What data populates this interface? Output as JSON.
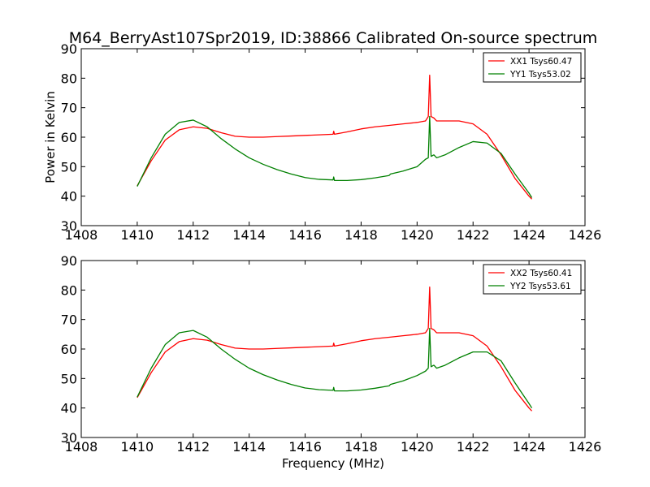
{
  "figure": {
    "title": "M64_BerryAst107Spr2019, ID:38866 Calibrated On-source spectrum"
  },
  "chart_data": [
    {
      "type": "line",
      "xlabel": "",
      "ylabel": "Power in Kelvin",
      "xlim": [
        1408,
        1426
      ],
      "ylim": [
        30,
        90
      ],
      "xticks": [
        1408,
        1410,
        1412,
        1414,
        1416,
        1418,
        1420,
        1422,
        1424,
        1426
      ],
      "yticks": [
        30,
        40,
        50,
        60,
        70,
        80,
        90
      ],
      "grid": false,
      "legend_position": "top-right",
      "series": [
        {
          "name": "XX1 Tsys60.47",
          "color": "#ff0000",
          "x": [
            1410.0,
            1410.5,
            1411.0,
            1411.5,
            1412.0,
            1412.5,
            1413.0,
            1413.5,
            1414.0,
            1414.5,
            1415.0,
            1415.5,
            1416.0,
            1416.5,
            1417.0,
            1417.02,
            1417.05,
            1417.5,
            1418.0,
            1418.5,
            1419.0,
            1419.5,
            1420.0,
            1420.3,
            1420.4,
            1420.45,
            1420.5,
            1420.6,
            1420.7,
            1421.0,
            1421.5,
            1422.0,
            1422.5,
            1423.0,
            1423.5,
            1424.0,
            1424.1
          ],
          "y": [
            43.5,
            52.0,
            59.0,
            62.5,
            63.5,
            63.0,
            61.5,
            60.3,
            60.0,
            60.0,
            60.2,
            60.4,
            60.6,
            60.8,
            61.0,
            62.0,
            61.0,
            61.8,
            62.8,
            63.5,
            64.0,
            64.5,
            65.0,
            65.5,
            67.0,
            81.0,
            67.0,
            66.5,
            65.5,
            65.5,
            65.5,
            64.5,
            61.0,
            54.0,
            46.0,
            40.0,
            39.0
          ]
        },
        {
          "name": "YY1 Tsys53.02",
          "color": "#008000",
          "x": [
            1410.0,
            1410.5,
            1411.0,
            1411.5,
            1412.0,
            1412.5,
            1413.0,
            1413.5,
            1414.0,
            1414.5,
            1415.0,
            1415.5,
            1416.0,
            1416.5,
            1417.0,
            1417.02,
            1417.05,
            1417.5,
            1418.0,
            1418.5,
            1419.0,
            1419.05,
            1419.5,
            1420.0,
            1420.3,
            1420.4,
            1420.45,
            1420.5,
            1420.6,
            1420.7,
            1421.0,
            1421.5,
            1422.0,
            1422.5,
            1423.0,
            1423.5,
            1424.0,
            1424.1
          ],
          "y": [
            43.3,
            53.0,
            61.0,
            65.0,
            65.8,
            63.5,
            59.5,
            56.0,
            53.0,
            50.8,
            49.0,
            47.5,
            46.3,
            45.7,
            45.5,
            46.5,
            45.3,
            45.3,
            45.6,
            46.2,
            47.0,
            47.5,
            48.5,
            50.0,
            52.5,
            53.0,
            67.0,
            53.5,
            54.0,
            53.0,
            54.0,
            56.5,
            58.5,
            58.0,
            54.5,
            47.5,
            41.0,
            39.5
          ]
        }
      ]
    },
    {
      "type": "line",
      "xlabel": "Frequency (MHz)",
      "ylabel": "",
      "xlim": [
        1408,
        1426
      ],
      "ylim": [
        30,
        90
      ],
      "xticks": [
        1408,
        1410,
        1412,
        1414,
        1416,
        1418,
        1420,
        1422,
        1424,
        1426
      ],
      "yticks": [
        30,
        40,
        50,
        60,
        70,
        80,
        90
      ],
      "grid": false,
      "legend_position": "top-right",
      "series": [
        {
          "name": "XX2 Tsys60.41",
          "color": "#ff0000",
          "x": [
            1410.0,
            1410.5,
            1411.0,
            1411.5,
            1412.0,
            1412.5,
            1413.0,
            1413.5,
            1414.0,
            1414.5,
            1415.0,
            1415.5,
            1416.0,
            1416.5,
            1417.0,
            1417.02,
            1417.05,
            1417.5,
            1418.0,
            1418.5,
            1419.0,
            1419.5,
            1420.0,
            1420.3,
            1420.4,
            1420.45,
            1420.5,
            1420.6,
            1420.7,
            1421.0,
            1421.5,
            1422.0,
            1422.5,
            1423.0,
            1423.5,
            1424.0,
            1424.1
          ],
          "y": [
            43.5,
            52.0,
            59.0,
            62.5,
            63.5,
            63.0,
            61.5,
            60.3,
            60.0,
            60.0,
            60.2,
            60.4,
            60.6,
            60.8,
            61.0,
            62.0,
            61.0,
            61.8,
            62.8,
            63.5,
            64.0,
            64.5,
            65.0,
            65.5,
            67.0,
            81.0,
            67.0,
            66.5,
            65.5,
            65.5,
            65.5,
            64.5,
            61.0,
            54.0,
            46.0,
            40.0,
            39.0
          ]
        },
        {
          "name": "YY2 Tsys53.61",
          "color": "#008000",
          "x": [
            1410.0,
            1410.5,
            1411.0,
            1411.5,
            1412.0,
            1412.5,
            1413.0,
            1413.5,
            1414.0,
            1414.5,
            1415.0,
            1415.5,
            1416.0,
            1416.5,
            1417.0,
            1417.02,
            1417.05,
            1417.5,
            1418.0,
            1418.5,
            1419.0,
            1419.05,
            1419.5,
            1420.0,
            1420.3,
            1420.4,
            1420.45,
            1420.5,
            1420.6,
            1420.7,
            1421.0,
            1421.5,
            1422.0,
            1422.5,
            1423.0,
            1423.5,
            1424.0,
            1424.1
          ],
          "y": [
            43.7,
            53.5,
            61.5,
            65.5,
            66.3,
            64.0,
            60.0,
            56.5,
            53.5,
            51.3,
            49.5,
            48.0,
            46.8,
            46.2,
            46.0,
            47.0,
            45.8,
            45.8,
            46.1,
            46.7,
            47.5,
            48.0,
            49.2,
            51.0,
            52.5,
            53.5,
            67.0,
            54.0,
            54.5,
            53.5,
            54.5,
            57.0,
            59.0,
            59.0,
            56.0,
            48.5,
            41.5,
            40.0
          ]
        }
      ]
    }
  ]
}
